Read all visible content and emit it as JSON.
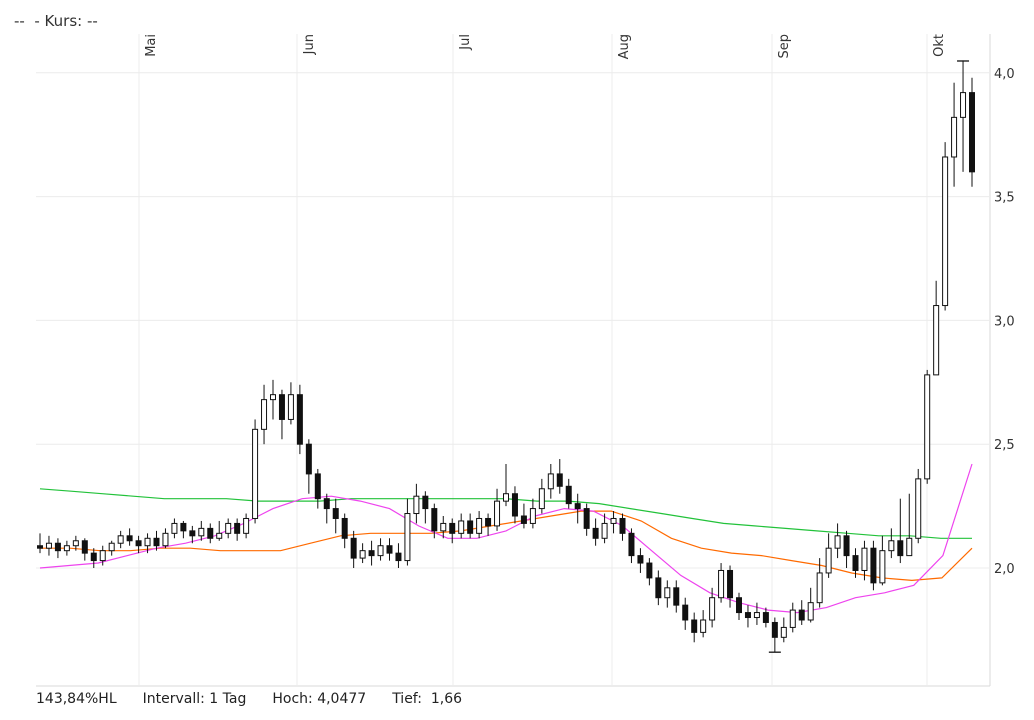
{
  "header": {
    "dashes": "--",
    "kurs_label": "- Kurs:",
    "kurs_value": "--"
  },
  "footer": {
    "range_pct": "143,84%HL",
    "interval": "Intervall: 1 Tag",
    "high": "Hoch: 4,0477",
    "low": "Tief:  1,66"
  },
  "chart_data": {
    "type": "candlestick",
    "x_axis_labels": [
      "Mai",
      "Jun",
      "Jul",
      "Aug",
      "Sep",
      "Okt"
    ],
    "y_tick_labels": [
      "2,0",
      "2,5",
      "3,0",
      "3,5",
      "4,0"
    ],
    "y_ticks": [
      2.0,
      2.5,
      3.0,
      3.5,
      4.0
    ],
    "ylim": [
      1.6,
      4.1
    ],
    "grid": true,
    "colors": {
      "up": "#ffffff",
      "down": "#111111",
      "wick": "#111111",
      "ma_green": "#22c23a",
      "ma_orange": "#ff6a00",
      "ma_magenta": "#ee44ee",
      "grid": "#ececec"
    },
    "high": 4.0477,
    "low": 1.66,
    "candles": [
      [
        2.09,
        2.08,
        2.14,
        2.06
      ],
      [
        2.08,
        2.1,
        2.13,
        2.05
      ],
      [
        2.1,
        2.07,
        2.12,
        2.04
      ],
      [
        2.07,
        2.09,
        2.11,
        2.05
      ],
      [
        2.09,
        2.11,
        2.13,
        2.07
      ],
      [
        2.11,
        2.06,
        2.12,
        2.03
      ],
      [
        2.06,
        2.03,
        2.08,
        2.0
      ],
      [
        2.03,
        2.07,
        2.09,
        2.01
      ],
      [
        2.07,
        2.1,
        2.11,
        2.05
      ],
      [
        2.1,
        2.13,
        2.15,
        2.08
      ],
      [
        2.13,
        2.11,
        2.16,
        2.09
      ],
      [
        2.11,
        2.09,
        2.13,
        2.06
      ],
      [
        2.09,
        2.12,
        2.14,
        2.06
      ],
      [
        2.12,
        2.09,
        2.15,
        2.07
      ],
      [
        2.09,
        2.14,
        2.16,
        2.08
      ],
      [
        2.14,
        2.18,
        2.2,
        2.12
      ],
      [
        2.18,
        2.15,
        2.19,
        2.12
      ],
      [
        2.15,
        2.13,
        2.17,
        2.1
      ],
      [
        2.13,
        2.16,
        2.19,
        2.11
      ],
      [
        2.16,
        2.12,
        2.18,
        2.1
      ],
      [
        2.12,
        2.14,
        2.19,
        2.11
      ],
      [
        2.14,
        2.18,
        2.2,
        2.12
      ],
      [
        2.18,
        2.14,
        2.2,
        2.11
      ],
      [
        2.14,
        2.2,
        2.22,
        2.12
      ],
      [
        2.2,
        2.56,
        2.6,
        2.18
      ],
      [
        2.56,
        2.68,
        2.74,
        2.5
      ],
      [
        2.68,
        2.7,
        2.76,
        2.6
      ],
      [
        2.7,
        2.6,
        2.72,
        2.52
      ],
      [
        2.6,
        2.7,
        2.75,
        2.58
      ],
      [
        2.7,
        2.5,
        2.74,
        2.46
      ],
      [
        2.5,
        2.38,
        2.52,
        2.3
      ],
      [
        2.38,
        2.28,
        2.4,
        2.24
      ],
      [
        2.28,
        2.24,
        2.3,
        2.18
      ],
      [
        2.24,
        2.2,
        2.28,
        2.14
      ],
      [
        2.2,
        2.12,
        2.22,
        2.08
      ],
      [
        2.12,
        2.04,
        2.15,
        2.0
      ],
      [
        2.04,
        2.07,
        2.1,
        2.02
      ],
      [
        2.07,
        2.05,
        2.11,
        2.01
      ],
      [
        2.05,
        2.09,
        2.12,
        2.03
      ],
      [
        2.09,
        2.06,
        2.12,
        2.03
      ],
      [
        2.06,
        2.03,
        2.1,
        2.0
      ],
      [
        2.03,
        2.22,
        2.28,
        2.01
      ],
      [
        2.22,
        2.29,
        2.34,
        2.18
      ],
      [
        2.29,
        2.24,
        2.31,
        2.18
      ],
      [
        2.24,
        2.15,
        2.26,
        2.12
      ],
      [
        2.15,
        2.18,
        2.21,
        2.12
      ],
      [
        2.18,
        2.14,
        2.2,
        2.1
      ],
      [
        2.14,
        2.19,
        2.22,
        2.12
      ],
      [
        2.19,
        2.14,
        2.22,
        2.12
      ],
      [
        2.14,
        2.2,
        2.23,
        2.12
      ],
      [
        2.2,
        2.17,
        2.22,
        2.13
      ],
      [
        2.17,
        2.27,
        2.32,
        2.15
      ],
      [
        2.27,
        2.3,
        2.42,
        2.25
      ],
      [
        2.3,
        2.21,
        2.33,
        2.18
      ],
      [
        2.21,
        2.18,
        2.26,
        2.16
      ],
      [
        2.18,
        2.24,
        2.28,
        2.16
      ],
      [
        2.24,
        2.32,
        2.36,
        2.22
      ],
      [
        2.32,
        2.38,
        2.42,
        2.28
      ],
      [
        2.38,
        2.33,
        2.44,
        2.3
      ],
      [
        2.33,
        2.26,
        2.36,
        2.24
      ],
      [
        2.26,
        2.24,
        2.3,
        2.18
      ],
      [
        2.24,
        2.16,
        2.26,
        2.13
      ],
      [
        2.16,
        2.12,
        2.2,
        2.09
      ],
      [
        2.12,
        2.18,
        2.22,
        2.1
      ],
      [
        2.18,
        2.2,
        2.23,
        2.14
      ],
      [
        2.2,
        2.14,
        2.22,
        2.11
      ],
      [
        2.14,
        2.05,
        2.16,
        2.02
      ],
      [
        2.05,
        2.02,
        2.08,
        1.98
      ],
      [
        2.02,
        1.96,
        2.04,
        1.93
      ],
      [
        1.96,
        1.88,
        1.99,
        1.85
      ],
      [
        1.88,
        1.92,
        1.95,
        1.84
      ],
      [
        1.92,
        1.85,
        1.95,
        1.82
      ],
      [
        1.85,
        1.79,
        1.88,
        1.75
      ],
      [
        1.79,
        1.74,
        1.82,
        1.7
      ],
      [
        1.74,
        1.79,
        1.83,
        1.72
      ],
      [
        1.79,
        1.88,
        1.92,
        1.76
      ],
      [
        1.88,
        1.99,
        2.02,
        1.86
      ],
      [
        1.99,
        1.88,
        2.01,
        1.84
      ],
      [
        1.88,
        1.82,
        1.9,
        1.79
      ],
      [
        1.82,
        1.8,
        1.85,
        1.76
      ],
      [
        1.8,
        1.82,
        1.86,
        1.77
      ],
      [
        1.82,
        1.78,
        1.84,
        1.76
      ],
      [
        1.78,
        1.72,
        1.8,
        1.66
      ],
      [
        1.72,
        1.76,
        1.8,
        1.7
      ],
      [
        1.76,
        1.83,
        1.86,
        1.74
      ],
      [
        1.83,
        1.79,
        1.87,
        1.77
      ],
      [
        1.79,
        1.86,
        1.92,
        1.78
      ],
      [
        1.86,
        1.98,
        2.04,
        1.84
      ],
      [
        1.98,
        2.08,
        2.14,
        1.96
      ],
      [
        2.08,
        2.13,
        2.18,
        2.04
      ],
      [
        2.13,
        2.05,
        2.15,
        2.0
      ],
      [
        2.05,
        1.99,
        2.08,
        1.96
      ],
      [
        1.99,
        2.08,
        2.11,
        1.95
      ],
      [
        2.08,
        1.94,
        2.11,
        1.91
      ],
      [
        1.94,
        2.07,
        2.13,
        1.93
      ],
      [
        2.07,
        2.11,
        2.16,
        2.04
      ],
      [
        2.11,
        2.05,
        2.28,
        2.02
      ],
      [
        2.05,
        2.12,
        2.3,
        2.1
      ],
      [
        2.12,
        2.36,
        2.4,
        2.1
      ],
      [
        2.36,
        2.78,
        2.8,
        2.34
      ],
      [
        2.78,
        3.06,
        3.16,
        2.78
      ],
      [
        3.06,
        3.66,
        3.72,
        3.04
      ],
      [
        3.66,
        3.82,
        3.96,
        3.54
      ],
      [
        3.82,
        3.92,
        4.05,
        3.6
      ],
      [
        3.92,
        3.6,
        3.98,
        3.54
      ]
    ],
    "ma_green": [
      2.32,
      2.31,
      2.3,
      2.29,
      2.28,
      2.28,
      2.28,
      2.27,
      2.27,
      2.27,
      2.28,
      2.28,
      2.28,
      2.28,
      2.28,
      2.28,
      2.27,
      2.27,
      2.26,
      2.24,
      2.22,
      2.2,
      2.18,
      2.17,
      2.16,
      2.15,
      2.14,
      2.13,
      2.13,
      2.12,
      2.12
    ],
    "ma_orange": [
      2.08,
      2.08,
      2.07,
      2.07,
      2.08,
      2.08,
      2.07,
      2.07,
      2.07,
      2.1,
      2.13,
      2.14,
      2.14,
      2.14,
      2.15,
      2.17,
      2.19,
      2.21,
      2.23,
      2.23,
      2.19,
      2.12,
      2.08,
      2.06,
      2.05,
      2.03,
      2.01,
      1.98,
      1.96,
      1.95,
      1.96,
      2.08
    ],
    "ma_magenta": [
      2.0,
      2.01,
      2.02,
      2.05,
      2.08,
      2.1,
      2.13,
      2.18,
      2.24,
      2.28,
      2.29,
      2.27,
      2.24,
      2.17,
      2.12,
      2.12,
      2.15,
      2.21,
      2.24,
      2.23,
      2.17,
      2.07,
      1.97,
      1.9,
      1.86,
      1.83,
      1.82,
      1.84,
      1.88,
      1.9,
      1.93,
      2.05,
      2.42
    ]
  }
}
